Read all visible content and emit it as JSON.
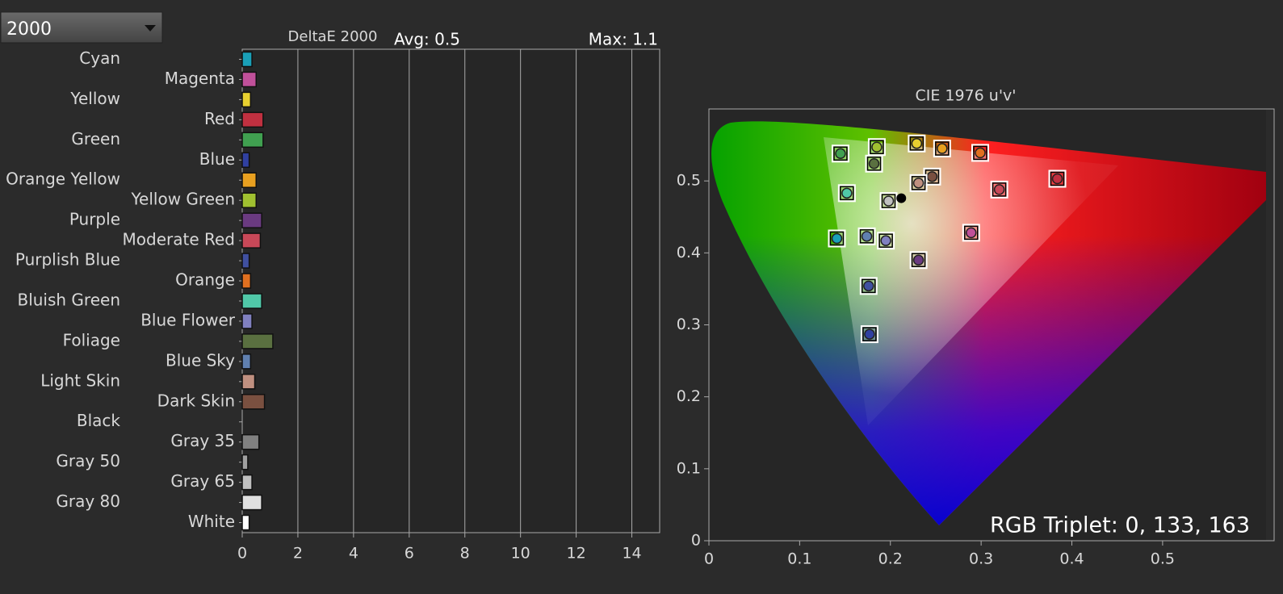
{
  "dropdown": {
    "value": "2000"
  },
  "chart_data": [
    {
      "type": "bar",
      "orientation": "horizontal",
      "title": "DeltaE 2000",
      "avg_label": "Avg: 0.5",
      "max_label": "Max: 1.1",
      "categories": [
        "Cyan",
        "Magenta",
        "Yellow",
        "Red",
        "Green",
        "Blue",
        "Orange Yellow",
        "Yellow Green",
        "Purple",
        "Moderate Red",
        "Purplish Blue",
        "Orange",
        "Bluish Green",
        "Blue Flower",
        "Foliage",
        "Blue Sky",
        "Light Skin",
        "Dark Skin",
        "Black",
        "Gray 35",
        "Gray 50",
        "Gray 65",
        "Gray 80",
        "White"
      ],
      "values": [
        0.35,
        0.5,
        0.3,
        0.75,
        0.75,
        0.25,
        0.5,
        0.5,
        0.7,
        0.65,
        0.25,
        0.3,
        0.7,
        0.35,
        1.1,
        0.3,
        0.45,
        0.8,
        0,
        0.6,
        0.2,
        0.35,
        0.7,
        0.25
      ],
      "colors": [
        "#1aa0b8",
        "#c0509a",
        "#e8d030",
        "#c03040",
        "#40a050",
        "#3040a0",
        "#e8a020",
        "#a0c030",
        "#6a3a80",
        "#c84858",
        "#4050a0",
        "#e07020",
        "#50c8a8",
        "#8080c0",
        "#5a7040",
        "#6080b0",
        "#c09080",
        "#7a5040",
        "#202020",
        "#808080",
        "#a0a0a0",
        "#c0c0c0",
        "#e0e0e0",
        "#ffffff"
      ],
      "xlim": [
        0,
        15
      ],
      "xticks": [
        0,
        2,
        4,
        6,
        8,
        10,
        12,
        14
      ],
      "grid": true
    },
    {
      "type": "scatter",
      "title": "CIE 1976 u'v'",
      "x": [
        0.145,
        0.185,
        0.182,
        0.229,
        0.257,
        0.299,
        0.246,
        0.231,
        0.152,
        0.198,
        0.384,
        0.32,
        0.141,
        0.174,
        0.195,
        0.289,
        0.231,
        0.176,
        0.177
      ],
      "y": [
        0.538,
        0.547,
        0.524,
        0.552,
        0.545,
        0.539,
        0.506,
        0.497,
        0.483,
        0.472,
        0.503,
        0.488,
        0.42,
        0.423,
        0.417,
        0.428,
        0.39,
        0.354,
        0.287
      ],
      "colors": [
        "#40a050",
        "#a0c030",
        "#5a7040",
        "#e8d030",
        "#e8a020",
        "#e07020",
        "#7a5040",
        "#c09080",
        "#50c8a8",
        "#c0c0c0",
        "#c03040",
        "#c84858",
        "#1aa0b8",
        "#6080b0",
        "#8080c0",
        "#c0509a",
        "#6a3a80",
        "#4050a0",
        "#3040a0"
      ],
      "white_point": {
        "x": 0.212,
        "y": 0.476
      },
      "xlim": [
        0,
        0.614
      ],
      "ylim": [
        0,
        0.6
      ],
      "xticks": [
        0,
        0.1,
        0.2,
        0.3,
        0.4,
        0.5
      ],
      "yticks": [
        0,
        0.1,
        0.2,
        0.3,
        0.4,
        0.5
      ],
      "annotation": "RGB Triplet: 0, 133, 163"
    }
  ]
}
